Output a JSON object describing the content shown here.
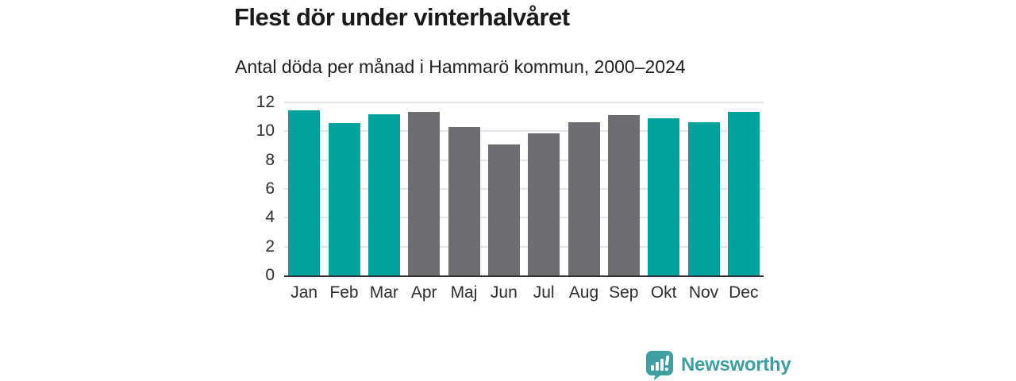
{
  "chart_data": {
    "type": "bar",
    "title": "Flest dör under vinterhalvåret",
    "subtitle": "Antal döda per månad i Hammarö kommun, 2000–2024",
    "categories": [
      "Jan",
      "Feb",
      "Mar",
      "Apr",
      "Maj",
      "Jun",
      "Jul",
      "Aug",
      "Sep",
      "Okt",
      "Nov",
      "Dec"
    ],
    "values": [
      11.45,
      10.55,
      11.15,
      11.35,
      10.3,
      9.1,
      9.85,
      10.65,
      11.1,
      10.9,
      10.6,
      11.35
    ],
    "bar_colors": [
      "#00a29b",
      "#00a29b",
      "#00a29b",
      "#6d6d72",
      "#6d6d72",
      "#6d6d72",
      "#6d6d72",
      "#6d6d72",
      "#6d6d72",
      "#00a29b",
      "#00a29b",
      "#00a29b"
    ],
    "highlight_color": "#00a29b",
    "muted_color": "#6d6d72",
    "xlabel": "",
    "ylabel": "",
    "ylim": [
      0,
      12
    ],
    "yticks": [
      0,
      2,
      4,
      6,
      8,
      10,
      12
    ],
    "grid": "horizontal-only",
    "legend": "none",
    "gridline_color": "#e5e5e5",
    "axis_line_color": "#323232"
  },
  "footer": {
    "brand": "Newsworthy",
    "brand_color": "#3f9fa0",
    "brand_icon": "speech-bubble-bar-chart-exclamation"
  }
}
